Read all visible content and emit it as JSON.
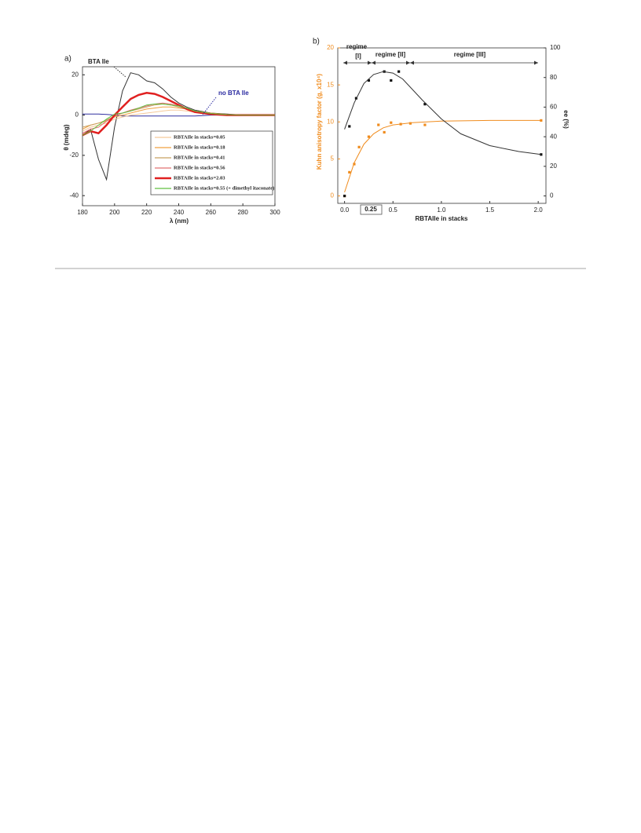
{
  "chart_data": [
    {
      "type": "line",
      "panel_label": "a)",
      "x_label": "λ (nm)",
      "y_label": "θ (mdeg)",
      "xlim": [
        180,
        300
      ],
      "ylim": [
        -45,
        24
      ],
      "xticks": [
        180,
        200,
        220,
        240,
        260,
        280,
        300
      ],
      "yticks": [
        -40,
        -20,
        0,
        20
      ],
      "annotations": [
        "BTA Ile",
        "no BTA Ile"
      ],
      "x": [
        180,
        185,
        190,
        195,
        200,
        205,
        210,
        215,
        220,
        225,
        230,
        235,
        240,
        245,
        250,
        260,
        270,
        280,
        290,
        300
      ],
      "series": [
        {
          "color": "#333333",
          "values": [
            -10,
            -7,
            -22,
            -32,
            -6,
            12,
            21,
            20,
            17,
            16,
            13,
            9,
            6,
            4,
            2.5,
            1,
            0.5,
            0,
            0,
            0
          ]
        },
        {
          "color": "#3030a0",
          "values": [
            0.5,
            0.5,
            0.5,
            0.3,
            0,
            -0.5,
            -0.5,
            -0.5,
            -0.5,
            -0.5,
            -0.5,
            -0.5,
            -0.5,
            -0.5,
            -0.5,
            0,
            0,
            0,
            0,
            0
          ]
        },
        {
          "name": "RBTAIle in stacks=0.05",
          "color": "#f5c99a",
          "values": [
            -8,
            -6,
            -5,
            -4,
            -2,
            -1,
            0,
            0.5,
            1,
            1.5,
            2,
            2.5,
            2.5,
            2,
            1.5,
            0.5,
            0,
            0,
            0,
            0
          ]
        },
        {
          "name": "RBTAIle in stacks=0.18",
          "color": "#f0a040",
          "values": [
            -7,
            -5,
            -4,
            -3,
            -1,
            0,
            1,
            2,
            3,
            3.5,
            4,
            4,
            3.5,
            3,
            2,
            1,
            0.3,
            0,
            0,
            0
          ]
        },
        {
          "name": "RBTAIle in stacks=0.41",
          "color": "#c8a060",
          "values": [
            -6,
            -5,
            -4,
            -2.5,
            -0.5,
            1,
            2,
            3,
            4,
            5,
            5.5,
            5,
            4,
            3,
            2,
            0.8,
            0.2,
            0,
            0,
            0
          ]
        },
        {
          "name": "RBTAIle in stacks=0.56",
          "color": "#e07070",
          "values": [
            -9,
            -7,
            -6,
            -3,
            -0.5,
            1,
            2.5,
            3.5,
            4.5,
            5.5,
            6,
            5.5,
            4.5,
            3.5,
            2,
            0.8,
            0.2,
            0,
            0,
            0
          ]
        },
        {
          "name": "RBTAIle in stacks=2.03",
          "color": "#e02020",
          "line_width": 2.5,
          "values": [
            -10,
            -8,
            -9,
            -5,
            0,
            4,
            8,
            10,
            11,
            10.5,
            9,
            7,
            5,
            3,
            1.5,
            0.5,
            0,
            0,
            0,
            0
          ]
        },
        {
          "name": "RBTAIle in stacks=0.55 (+ dimethyl itaconate)",
          "color": "#60c040",
          "values": [
            -10,
            -8,
            -5,
            -2,
            0.5,
            1,
            2,
            3.5,
            5,
            5.5,
            5.5,
            5,
            4.5,
            3.5,
            2,
            0.8,
            0.2,
            0,
            0,
            0
          ]
        }
      ]
    },
    {
      "type": "scatter",
      "panel_label": "b)",
      "x_label": "RBTAIle in stacks",
      "y_label": "Kuhn anisotropy factor (g, x10⁴)",
      "y2_label": "ee (%)",
      "xlim": [
        -0.07,
        2.08
      ],
      "ylim": [
        -1,
        20
      ],
      "y2lim": [
        -5,
        100
      ],
      "xticks": [
        {
          "value": 0,
          "label": "0.0"
        },
        {
          "value": 0.5,
          "label": "0.5"
        },
        {
          "value": 1,
          "label": "1.0"
        },
        {
          "value": 1.5,
          "label": "1.5"
        },
        {
          "value": 2,
          "label": "2.0"
        }
      ],
      "yticks": [
        0,
        5,
        10,
        15,
        20
      ],
      "y2ticks": [
        0,
        20,
        40,
        60,
        80,
        100
      ],
      "annotations": [
        "regime",
        "[I]",
        "regime [II]",
        "regime [III]",
        "0.25"
      ],
      "series": [
        {
          "color": "#f08c1e",
          "style": "markers",
          "x": [
            0,
            0.05,
            0.1,
            0.15,
            0.25,
            0.35,
            0.41,
            0.48,
            0.58,
            0.68,
            0.83,
            2.03
          ],
          "values": [
            0,
            3.2,
            4.3,
            6.6,
            8,
            9.6,
            8.6,
            9.9,
            9.7,
            9.8,
            9.6,
            10.2
          ]
        },
        {
          "color": "#f08c1e",
          "style": "line",
          "x": [
            0,
            0.1,
            0.2,
            0.3,
            0.4,
            0.5,
            0.7,
            1,
            1.5,
            2.03
          ],
          "values": [
            0.5,
            4.5,
            7,
            8.4,
            9.2,
            9.6,
            9.9,
            10.1,
            10.2,
            10.2
          ]
        },
        {
          "color": "#111111",
          "style": "markers",
          "axis": "y2",
          "x": [
            0,
            0.05,
            0.12,
            0.25,
            0.41,
            0.48,
            0.56,
            0.83,
            2.03
          ],
          "values": [
            0,
            47,
            66,
            78,
            84,
            78,
            84,
            62,
            28
          ]
        },
        {
          "color": "#333333",
          "style": "line",
          "axis": "y2",
          "x": [
            0,
            0.1,
            0.2,
            0.3,
            0.4,
            0.5,
            0.6,
            0.8,
            1,
            1.2,
            1.5,
            1.8,
            2.03
          ],
          "values": [
            45,
            63,
            76,
            82,
            84,
            83,
            79,
            65,
            52,
            42,
            34,
            30,
            28
          ]
        }
      ]
    }
  ]
}
